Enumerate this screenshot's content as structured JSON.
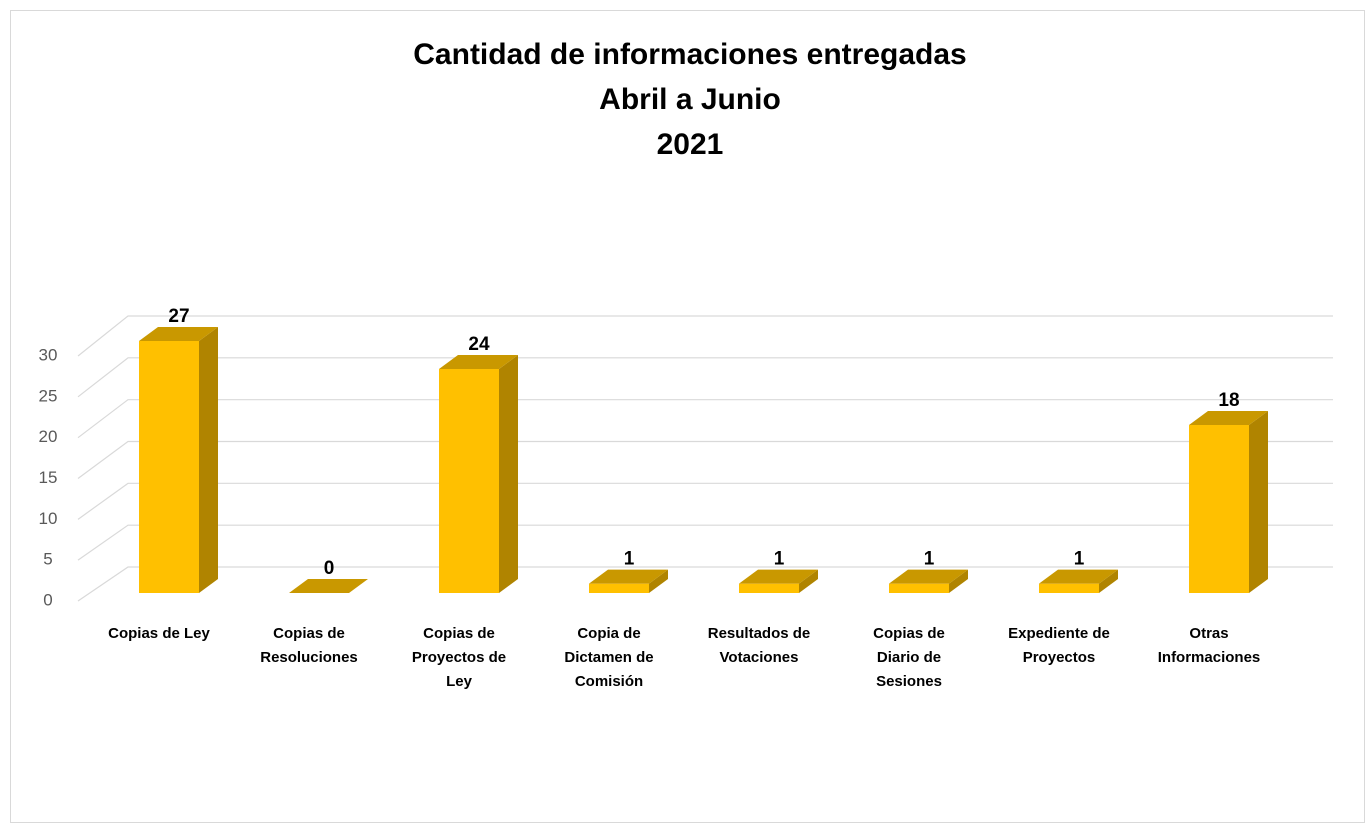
{
  "chart_data": {
    "type": "bar3d",
    "title": [
      "Cantidad de informaciones  entregadas",
      "Abril a Junio",
      "2021"
    ],
    "categories": [
      "Copias de Ley",
      "Copias de Resoluciones",
      "Copias de Proyectos de Ley",
      "Copia de Dictamen de Comisión",
      "Resultados de Votaciones",
      "Copias de Diario de Sesiones",
      "Expediente de Proyectos",
      "Otras Informaciones"
    ],
    "values": [
      27,
      0,
      24,
      1,
      1,
      1,
      1,
      18
    ],
    "color": "#FFC000",
    "ylim": [
      0,
      30
    ],
    "yticks": [
      0,
      5,
      10,
      15,
      20,
      25,
      30
    ],
    "grid": true
  }
}
